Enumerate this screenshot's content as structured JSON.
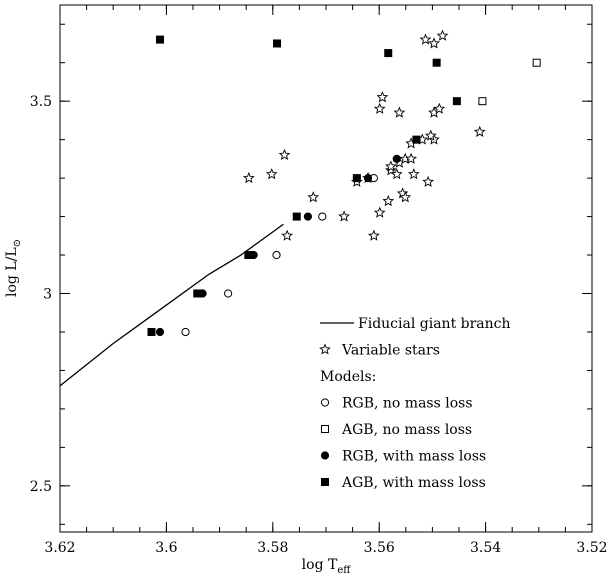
{
  "chart_data": {
    "type": "scatter",
    "title": "",
    "xlabel": "log T",
    "xlabel_sub": "eff",
    "ylabel": "log L/L",
    "ylabel_symbol": "⊙",
    "xlim": [
      3.62,
      3.52
    ],
    "ylim": [
      2.38,
      3.75
    ],
    "x_reversed": true,
    "x_ticks": [
      {
        "value": 3.62,
        "label": "3.62"
      },
      {
        "value": 3.6,
        "label": "3.6"
      },
      {
        "value": 3.58,
        "label": "3.58"
      },
      {
        "value": 3.56,
        "label": "3.56"
      },
      {
        "value": 3.54,
        "label": "3.54"
      },
      {
        "value": 3.52,
        "label": "3.52"
      }
    ],
    "y_ticks": [
      {
        "value": 2.5,
        "label": "2.5"
      },
      {
        "value": 3.0,
        "label": "3"
      },
      {
        "value": 3.5,
        "label": "3.5"
      }
    ],
    "x_minor_step": 0.005,
    "y_minor_step": 0.1,
    "legend_position": "bottom-right",
    "legend_header": "Models:",
    "series": [
      {
        "name": "Fiducial giant branch",
        "marker": "line",
        "points": [
          {
            "x": 3.62,
            "y": 2.76
          },
          {
            "x": 3.61,
            "y": 2.87
          },
          {
            "x": 3.6,
            "y": 2.97
          },
          {
            "x": 3.592,
            "y": 3.05
          },
          {
            "x": 3.586,
            "y": 3.1
          },
          {
            "x": 3.582,
            "y": 3.14
          },
          {
            "x": 3.578,
            "y": 3.18
          }
        ]
      },
      {
        "name": "Variable stars",
        "marker": "star",
        "points": [
          {
            "x": 3.5845,
            "y": 3.3
          },
          {
            "x": 3.5802,
            "y": 3.31
          },
          {
            "x": 3.5778,
            "y": 3.36
          },
          {
            "x": 3.5724,
            "y": 3.25
          },
          {
            "x": 3.5773,
            "y": 3.15
          },
          {
            "x": 3.5666,
            "y": 3.2
          },
          {
            "x": 3.5642,
            "y": 3.29
          },
          {
            "x": 3.5621,
            "y": 3.3
          },
          {
            "x": 3.561,
            "y": 3.15
          },
          {
            "x": 3.5599,
            "y": 3.21
          },
          {
            "x": 3.5583,
            "y": 3.24
          },
          {
            "x": 3.5556,
            "y": 3.26
          },
          {
            "x": 3.5551,
            "y": 3.25
          },
          {
            "x": 3.5578,
            "y": 3.32
          },
          {
            "x": 3.5567,
            "y": 3.31
          },
          {
            "x": 3.5562,
            "y": 3.34
          },
          {
            "x": 3.5551,
            "y": 3.35
          },
          {
            "x": 3.554,
            "y": 3.35
          },
          {
            "x": 3.5535,
            "y": 3.31
          },
          {
            "x": 3.5508,
            "y": 3.29
          },
          {
            "x": 3.554,
            "y": 3.39
          },
          {
            "x": 3.5519,
            "y": 3.4
          },
          {
            "x": 3.5497,
            "y": 3.4
          },
          {
            "x": 3.5503,
            "y": 3.41
          },
          {
            "x": 3.5411,
            "y": 3.42
          },
          {
            "x": 3.5599,
            "y": 3.48
          },
          {
            "x": 3.5594,
            "y": 3.51
          },
          {
            "x": 3.5562,
            "y": 3.47
          },
          {
            "x": 3.5497,
            "y": 3.47
          },
          {
            "x": 3.5487,
            "y": 3.48
          },
          {
            "x": 3.5513,
            "y": 3.66
          },
          {
            "x": 3.5497,
            "y": 3.65
          },
          {
            "x": 3.5481,
            "y": 3.67
          },
          {
            "x": 3.5578,
            "y": 3.33
          }
        ]
      },
      {
        "name": "RGB, no mass loss",
        "marker": "circle-open",
        "points": [
          {
            "x": 3.5964,
            "y": 2.9
          },
          {
            "x": 3.5884,
            "y": 3.0
          },
          {
            "x": 3.5793,
            "y": 3.1
          },
          {
            "x": 3.5707,
            "y": 3.2
          },
          {
            "x": 3.561,
            "y": 3.3
          }
        ]
      },
      {
        "name": "AGB, no mass loss",
        "marker": "square-open",
        "points": [
          {
            "x": 3.5406,
            "y": 3.5
          },
          {
            "x": 3.5304,
            "y": 3.6
          }
        ]
      },
      {
        "name": "RGB, with mass loss",
        "marker": "circle-filled",
        "points": [
          {
            "x": 3.6012,
            "y": 2.9
          },
          {
            "x": 3.5932,
            "y": 3.0
          },
          {
            "x": 3.5836,
            "y": 3.1
          },
          {
            "x": 3.5734,
            "y": 3.2
          },
          {
            "x": 3.5621,
            "y": 3.3
          },
          {
            "x": 3.5567,
            "y": 3.35
          }
        ]
      },
      {
        "name": "AGB, with mass loss",
        "marker": "square-filled",
        "points": [
          {
            "x": 3.6028,
            "y": 2.9
          },
          {
            "x": 3.5942,
            "y": 3.0
          },
          {
            "x": 3.5846,
            "y": 3.1
          },
          {
            "x": 3.5755,
            "y": 3.2
          },
          {
            "x": 3.5642,
            "y": 3.3
          },
          {
            "x": 3.553,
            "y": 3.4
          },
          {
            "x": 3.5454,
            "y": 3.5
          },
          {
            "x": 3.5492,
            "y": 3.6
          },
          {
            "x": 3.5583,
            "y": 3.625
          },
          {
            "x": 3.5792,
            "y": 3.65
          },
          {
            "x": 3.6012,
            "y": 3.66
          }
        ]
      }
    ]
  }
}
